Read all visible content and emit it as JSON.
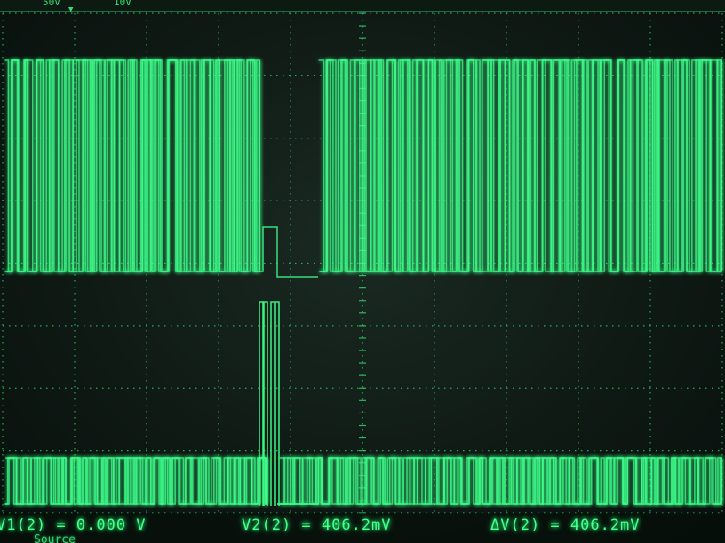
{
  "display": {
    "trace_color": "#3dff8a",
    "grid_color": "#2fd06a",
    "background": "#101a15",
    "top_marker_glyph": "▼",
    "top_fragments": [
      "50V",
      "10V"
    ]
  },
  "cursor_readouts": {
    "v1": "V1(2) = 0.000 V",
    "v2": "V2(2) = 406.2mV",
    "delta_v": "ΔV(2) = 406.2mV"
  },
  "menu_label": "Source"
}
